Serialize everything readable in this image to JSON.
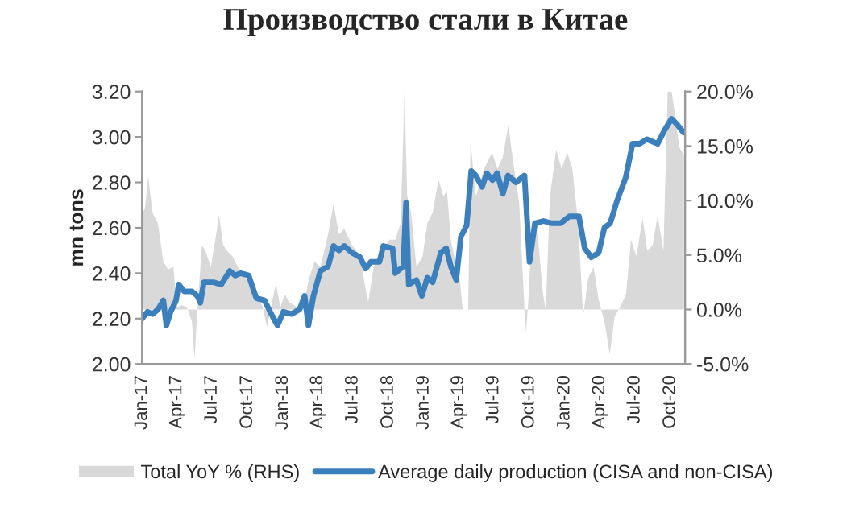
{
  "chart_data": {
    "type": "line",
    "title": "Производство стали в Китае",
    "ylabel": "mn tons",
    "legend": "bottom",
    "grid": false,
    "xlim": [
      "2017-01-01",
      "2020-11-08"
    ],
    "xticks": [
      {
        "value": "2017-01-01",
        "label": "Jan-17"
      },
      {
        "value": "2017-04-01",
        "label": "Apr-17"
      },
      {
        "value": "2017-07-01",
        "label": "Jul-17"
      },
      {
        "value": "2017-10-01",
        "label": "Oct-17"
      },
      {
        "value": "2018-01-01",
        "label": "Jan-18"
      },
      {
        "value": "2018-04-01",
        "label": "Apr-18"
      },
      {
        "value": "2018-07-01",
        "label": "Jul-18"
      },
      {
        "value": "2018-10-01",
        "label": "Oct-18"
      },
      {
        "value": "2019-01-01",
        "label": "Jan-19"
      },
      {
        "value": "2019-04-01",
        "label": "Apr-19"
      },
      {
        "value": "2019-07-01",
        "label": "Jul-19"
      },
      {
        "value": "2019-10-01",
        "label": "Oct-19"
      },
      {
        "value": "2020-01-01",
        "label": "Jan-20"
      },
      {
        "value": "2020-04-01",
        "label": "Apr-20"
      },
      {
        "value": "2020-07-01",
        "label": "Jul-20"
      },
      {
        "value": "2020-10-01",
        "label": "Oct-20"
      }
    ],
    "ylim": [
      2.0,
      3.2
    ],
    "yticks": [
      {
        "value": 2.0,
        "label": "2.00"
      },
      {
        "value": 2.2,
        "label": "2.20"
      },
      {
        "value": 2.4,
        "label": "2.40"
      },
      {
        "value": 2.6,
        "label": "2.60"
      },
      {
        "value": 2.8,
        "label": "2.80"
      },
      {
        "value": 3.0,
        "label": "3.00"
      },
      {
        "value": 3.2,
        "label": "3.20"
      }
    ],
    "y2lim": [
      -5,
      20
    ],
    "y2ticks": [
      {
        "value": -5,
        "label": "-5.0%"
      },
      {
        "value": 0,
        "label": "0.0%"
      },
      {
        "value": 5,
        "label": "5.0%"
      },
      {
        "value": 10,
        "label": "10.0%"
      },
      {
        "value": 15,
        "label": "15.0%"
      },
      {
        "value": 20,
        "label": "20.0%"
      }
    ],
    "series": [
      {
        "name": "Total YoY % (RHS)",
        "type": "area",
        "axis": "y2",
        "color": "#d9d9d9",
        "x": [
          "2017-01-01",
          "2017-01-08",
          "2017-01-17",
          "2017-01-28",
          "2017-02-11",
          "2017-02-25",
          "2017-03-09",
          "2017-03-23",
          "2017-04-02",
          "2017-04-13",
          "2017-04-27",
          "2017-05-10",
          "2017-05-17",
          "2017-05-24",
          "2017-06-05",
          "2017-06-14",
          "2017-06-28",
          "2017-07-12",
          "2017-07-19",
          "2017-07-30",
          "2017-08-09",
          "2017-08-23",
          "2017-09-06",
          "2017-09-27",
          "2017-10-17",
          "2017-11-08",
          "2017-11-21",
          "2017-12-05",
          "2017-12-14",
          "2017-12-25",
          "2018-01-06",
          "2018-01-16",
          "2018-02-06",
          "2018-02-26",
          "2018-03-10",
          "2018-03-24",
          "2018-04-08",
          "2018-04-28",
          "2018-05-12",
          "2018-05-26",
          "2018-06-09",
          "2018-06-29",
          "2018-07-20",
          "2018-08-03",
          "2018-08-10",
          "2018-08-24",
          "2018-09-14",
          "2018-10-05",
          "2018-10-19",
          "2018-11-02",
          "2018-11-12",
          "2018-11-19",
          "2018-11-29",
          "2018-12-13",
          "2018-12-29",
          "2019-01-10",
          "2019-01-24",
          "2019-02-08",
          "2019-02-21",
          "2019-03-02",
          "2019-03-12",
          "2019-03-26",
          "2019-04-01",
          "2019-04-12",
          "2019-04-26",
          "2019-05-02",
          "2019-05-16",
          "2019-06-06",
          "2019-06-27",
          "2019-07-11",
          "2019-07-24",
          "2019-08-08",
          "2019-08-21",
          "2019-09-05",
          "2019-09-19",
          "2019-09-23",
          "2019-09-29",
          "2019-10-09",
          "2019-10-23",
          "2019-11-06",
          "2019-11-13",
          "2019-11-24",
          "2019-12-10",
          "2019-12-24",
          "2020-01-08",
          "2020-01-21",
          "2020-02-05",
          "2020-02-18",
          "2020-03-02",
          "2020-03-16",
          "2020-03-29",
          "2020-04-13",
          "2020-04-27",
          "2020-05-10",
          "2020-05-24",
          "2020-06-08",
          "2020-06-21",
          "2020-07-05",
          "2020-07-21",
          "2020-08-02",
          "2020-08-16",
          "2020-08-29",
          "2020-09-13",
          "2020-09-24",
          "2020-10-04",
          "2020-10-13",
          "2020-10-24",
          "2020-11-05"
        ],
        "values": [
          8.9,
          9.2,
          12.2,
          8.9,
          7.9,
          4.4,
          3.7,
          3.9,
          0.2,
          0.4,
          0.2,
          -1.1,
          -4.6,
          -0.1,
          5.9,
          5.4,
          3.9,
          6.9,
          8.7,
          5.9,
          5.4,
          4.9,
          3.9,
          2.9,
          1.4,
          0.4,
          -1.6,
          0.9,
          2.4,
          0.2,
          1.4,
          0.7,
          0.2,
          0.9,
          2.9,
          4.4,
          3.9,
          6.9,
          9.7,
          6.9,
          7.4,
          5.9,
          4.9,
          1.9,
          0.7,
          3.9,
          5.4,
          6.4,
          6.4,
          7.9,
          19.9,
          10.4,
          8.9,
          3.9,
          4.9,
          7.9,
          8.9,
          11.9,
          10.4,
          10.9,
          6.4,
          3.9,
          3.9,
          0,
          0,
          15.4,
          10.4,
          12.9,
          14.4,
          12.9,
          13.9,
          16.9,
          13.4,
          9.9,
          0,
          -2.1,
          0.9,
          7.9,
          6.9,
          1.4,
          0,
          10.4,
          14.7,
          12.9,
          14.4,
          12.9,
          7.9,
          -0.6,
          2.9,
          3.9,
          0.9,
          -1.1,
          -4.1,
          -0.6,
          0.2,
          1.4,
          6.4,
          4.9,
          8.4,
          5.4,
          5.9,
          8.6,
          5.4,
          20.0,
          20.0,
          17.9,
          14.9,
          14.2
        ]
      },
      {
        "name": "Average daily production (CISA and non-CISA)",
        "color": "#3c7fbd",
        "x": [
          "2017-01-01",
          "2017-01-15",
          "2017-01-28",
          "2017-02-11",
          "2017-02-25",
          "2017-03-05",
          "2017-03-16",
          "2017-03-30",
          "2017-04-06",
          "2017-04-20",
          "2017-05-10",
          "2017-05-24",
          "2017-06-01",
          "2017-06-10",
          "2017-07-05",
          "2017-07-25",
          "2017-08-16",
          "2017-08-30",
          "2017-09-13",
          "2017-10-04",
          "2017-10-24",
          "2017-11-14",
          "2017-12-05",
          "2017-12-18",
          "2018-01-02",
          "2018-01-23",
          "2018-02-13",
          "2018-02-26",
          "2018-03-08",
          "2018-03-21",
          "2018-04-08",
          "2018-04-28",
          "2018-05-12",
          "2018-05-26",
          "2018-06-09",
          "2018-06-29",
          "2018-07-20",
          "2018-08-03",
          "2018-08-17",
          "2018-09-08",
          "2018-09-18",
          "2018-10-12",
          "2018-10-19",
          "2018-11-09",
          "2018-11-16",
          "2018-11-23",
          "2018-12-13",
          "2018-12-27",
          "2019-01-10",
          "2019-01-24",
          "2019-02-14",
          "2019-02-28",
          "2019-03-12",
          "2019-03-26",
          "2019-04-07",
          "2019-04-22",
          "2019-05-04",
          "2019-05-16",
          "2019-06-01",
          "2019-06-13",
          "2019-06-28",
          "2019-07-10",
          "2019-07-25",
          "2019-08-07",
          "2019-08-28",
          "2019-09-19",
          "2019-10-02",
          "2019-10-16",
          "2019-11-07",
          "2019-11-28",
          "2019-12-22",
          "2020-01-13",
          "2020-02-07",
          "2020-02-22",
          "2020-03-10",
          "2020-03-29",
          "2020-04-13",
          "2020-04-28",
          "2020-05-16",
          "2020-06-07",
          "2020-06-25",
          "2020-07-13",
          "2020-08-01",
          "2020-08-29",
          "2020-09-16",
          "2020-10-04",
          "2020-10-16",
          "2020-11-04"
        ],
        "values": [
          2.2,
          2.23,
          2.22,
          2.24,
          2.28,
          2.17,
          2.23,
          2.28,
          2.35,
          2.32,
          2.32,
          2.3,
          2.27,
          2.36,
          2.36,
          2.35,
          2.41,
          2.39,
          2.4,
          2.39,
          2.29,
          2.28,
          2.21,
          2.17,
          2.23,
          2.22,
          2.24,
          2.3,
          2.17,
          2.3,
          2.41,
          2.43,
          2.52,
          2.5,
          2.52,
          2.49,
          2.47,
          2.42,
          2.45,
          2.45,
          2.52,
          2.51,
          2.4,
          2.43,
          2.71,
          2.35,
          2.37,
          2.3,
          2.38,
          2.36,
          2.49,
          2.51,
          2.43,
          2.37,
          2.56,
          2.61,
          2.85,
          2.83,
          2.78,
          2.84,
          2.81,
          2.84,
          2.75,
          2.83,
          2.8,
          2.83,
          2.45,
          2.62,
          2.63,
          2.62,
          2.62,
          2.65,
          2.65,
          2.51,
          2.47,
          2.49,
          2.6,
          2.62,
          2.72,
          2.82,
          2.97,
          2.97,
          2.99,
          2.97,
          3.03,
          3.08,
          3.06,
          3.02
        ]
      }
    ]
  }
}
